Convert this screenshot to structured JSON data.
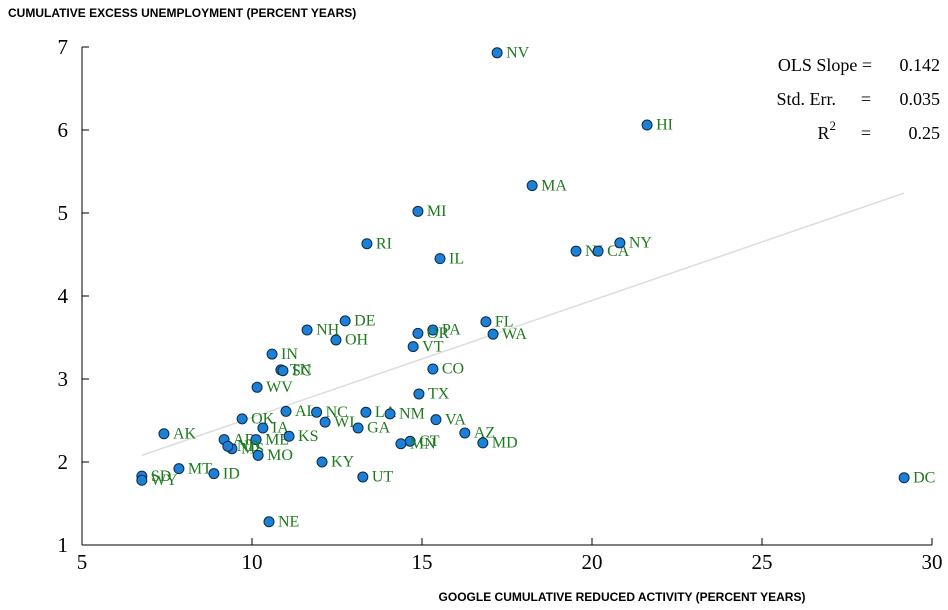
{
  "chart_data": {
    "type": "scatter",
    "ylabel": "CUMULATIVE EXCESS UNEMPLOYMENT (PERCENT YEARS)",
    "xlabel": "GOOGLE CUMULATIVE REDUCED ACTIVITY (PERCENT YEARS)",
    "xlim": [
      5,
      30
    ],
    "xticks": [
      5,
      10,
      15,
      20,
      25,
      30
    ],
    "ylim": [
      1,
      7
    ],
    "yticks": [
      1,
      2,
      3,
      4,
      5,
      6,
      7
    ],
    "color": "#1b80d6",
    "label_color": "#1e7a1e",
    "labels": [
      "NV",
      "HI",
      "MA",
      "MI",
      "RI",
      "IL",
      "NJ",
      "CA",
      "NY",
      "DE",
      "NH",
      "OH",
      "PA",
      "OR",
      "FL",
      "WA",
      "VT",
      "IN",
      "TN",
      "SC",
      "CO",
      "WV",
      "TX",
      "AL",
      "OK",
      "NC",
      "WI",
      "IA",
      "LA",
      "NM",
      "VA",
      "GA",
      "AZ",
      "MD",
      "CT",
      "MN",
      "AK",
      "AR",
      "ME",
      "KS",
      "MS",
      "ND",
      "MO",
      "KY",
      "MT",
      "ID",
      "UT",
      "NE",
      "DC",
      "SD",
      "WY"
    ],
    "x": [
      17.21,
      21.62,
      18.24,
      14.88,
      13.38,
      15.53,
      19.53,
      20.18,
      20.82,
      12.74,
      11.62,
      12.47,
      15.32,
      14.88,
      16.88,
      17.09,
      14.74,
      10.59,
      10.85,
      10.91,
      15.32,
      10.15,
      14.91,
      11.0,
      9.71,
      11.9,
      12.15,
      10.32,
      13.35,
      14.06,
      15.41,
      13.12,
      16.26,
      16.79,
      14.65,
      14.38,
      7.41,
      9.18,
      10.12,
      11.09,
      9.41,
      9.29,
      10.18,
      12.06,
      7.85,
      8.88,
      13.26,
      10.5,
      29.18,
      6.76,
      6.76
    ],
    "y": [
      6.93,
      6.06,
      5.33,
      5.02,
      4.63,
      4.45,
      4.54,
      4.54,
      4.64,
      3.7,
      3.59,
      3.47,
      3.59,
      3.55,
      3.69,
      3.54,
      3.39,
      3.3,
      3.11,
      3.1,
      3.12,
      2.9,
      2.82,
      2.61,
      2.52,
      2.6,
      2.48,
      2.41,
      2.6,
      2.58,
      2.51,
      2.41,
      2.35,
      2.23,
      2.25,
      2.22,
      2.34,
      2.27,
      2.27,
      2.31,
      2.16,
      2.19,
      2.08,
      2.0,
      1.92,
      1.86,
      1.82,
      1.28,
      1.81,
      1.83,
      1.78
    ],
    "fit_line": {
      "color": "#dddddd",
      "x": [
        6.76,
        29.18
      ],
      "y": [
        2.08,
        5.24
      ]
    },
    "stats": [
      {
        "label": "OLS Slope =",
        "value": "0.142"
      },
      {
        "label": "Std. Err.",
        "eq": "=",
        "value": "0.035"
      },
      {
        "label": "R",
        "sup": "2",
        "eq": "=",
        "value": "0.25"
      }
    ]
  }
}
